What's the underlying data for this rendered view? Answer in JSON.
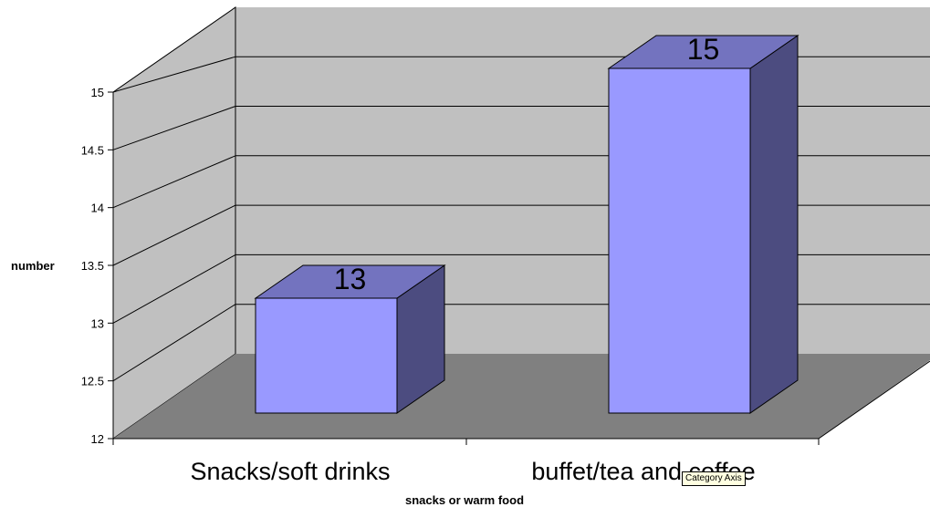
{
  "chart_data": {
    "type": "bar",
    "style": "3d-column",
    "categories": [
      "Snacks/soft drinks",
      "buffet/tea and coffee"
    ],
    "values": [
      13,
      15
    ],
    "data_labels": [
      "13",
      "15"
    ],
    "xlabel": "snacks or warm food",
    "ylabel": "number",
    "ylim": [
      12,
      15.5
    ],
    "yticks": [
      "12",
      "12.5",
      "13",
      "13.5",
      "14",
      "14.5",
      "15"
    ],
    "grid": true,
    "legend": "none",
    "colors": {
      "bar_front": "#9999ff",
      "bar_top": "#7373bf",
      "bar_side": "#4c4c80",
      "back_wall": "#c0c0c0",
      "side_wall": "#c0c0c0",
      "floor": "#808080"
    }
  },
  "tooltip": {
    "text": "Category Axis"
  }
}
